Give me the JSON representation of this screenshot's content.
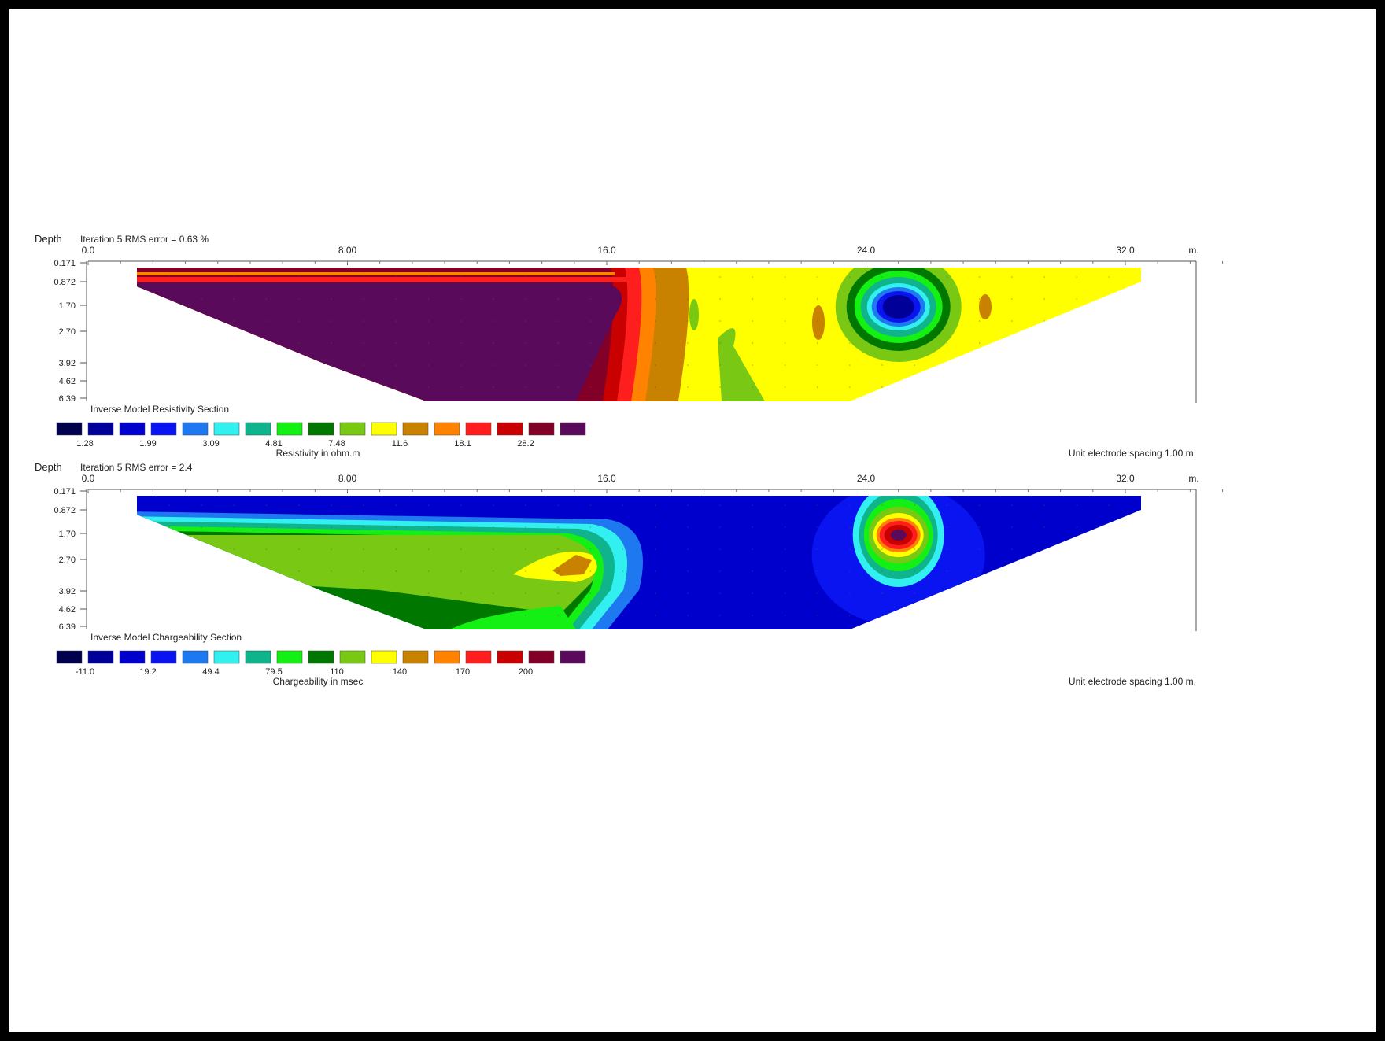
{
  "chart_data": [
    {
      "type": "heatmap",
      "depth_label": "Depth",
      "iteration_text": "Iteration 5 RMS error = 0.63 %",
      "x_ticks": [
        "0.0",
        "8.00",
        "16.0",
        "24.0",
        "32.0"
      ],
      "x_unit": "m.",
      "depth_ticks": [
        "0.171",
        "0.872",
        "1.70",
        "2.70",
        "3.92",
        "4.62",
        "6.39"
      ],
      "section_title": "Inverse Model Resistivity Section",
      "scale_labels": [
        "1.28",
        "1.99",
        "3.09",
        "4.81",
        "7.48",
        "11.6",
        "18.1",
        "28.2"
      ],
      "scale_unit_label": "Resistivity in ohm.m",
      "spacing_label": "Unit electrode spacing 1.00 m.",
      "anomalies": [
        {
          "x": 10.0,
          "depth": 3.0,
          "level": 16
        },
        {
          "x": 25.0,
          "depth": 1.7,
          "level": 2
        }
      ]
    },
    {
      "type": "heatmap",
      "depth_label": "Depth",
      "iteration_text": "Iteration 5 RMS error = 2.4",
      "x_ticks": [
        "0.0",
        "8.00",
        "16.0",
        "24.0",
        "32.0"
      ],
      "x_unit": "m.",
      "depth_ticks": [
        "0.171",
        "0.872",
        "1.70",
        "2.70",
        "3.92",
        "4.62",
        "6.39"
      ],
      "section_title": "Inverse Model Chargeability Section",
      "scale_labels": [
        "-11.0",
        "19.2",
        "49.4",
        "79.5",
        "110",
        "140",
        "170",
        "200"
      ],
      "scale_unit_label": "Chargeability in msec",
      "spacing_label": "Unit electrode spacing 1.00 m.",
      "anomalies": [
        {
          "x": 15.0,
          "depth": 2.7,
          "level": 11
        },
        {
          "x": 25.0,
          "depth": 1.7,
          "level": 14
        }
      ]
    }
  ],
  "colors": {
    "scale": [
      "#00004c",
      "#000099",
      "#0000cc",
      "#0a14f0",
      "#1e78f0",
      "#32f0f0",
      "#0fb48c",
      "#14f014",
      "#007800",
      "#78c814",
      "#ffff00",
      "#c88200",
      "#ff8200",
      "#ff1e1e",
      "#c80000",
      "#820028",
      "#5a0a5a"
    ],
    "frame_border": "#000000",
    "page_background": "#ffffff"
  }
}
